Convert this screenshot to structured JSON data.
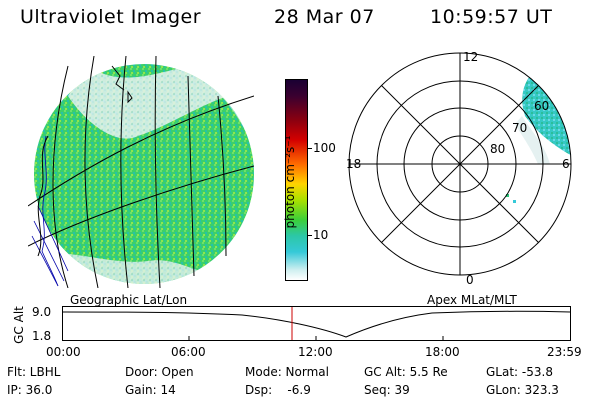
{
  "header": {
    "title": "Ultraviolet Imager",
    "date": "28 Mar 07",
    "time": "10:59:57 UT"
  },
  "colorbar": {
    "unit_label": "photon cm⁻²s⁻¹",
    "ticks": [
      "100",
      "10"
    ]
  },
  "geo_panel": {
    "label": "Geographic Lat/Lon"
  },
  "polar_panel": {
    "label": "Apex MLat/MLT",
    "mlt_labels": {
      "top": "12",
      "left": "18",
      "right": "6",
      "bottom": "0"
    },
    "lat_labels": [
      "60",
      "70",
      "80"
    ]
  },
  "altitude_strip": {
    "axis_label": "GC Alt",
    "y_ticks": [
      "9.0",
      "1.8"
    ],
    "x_ticks": [
      "00:00",
      "06:00",
      "12:00",
      "18:00",
      "23:59"
    ]
  },
  "info": {
    "filter": "Flt: LBHL",
    "door": "Door: Open",
    "mode": "Mode: Normal",
    "gc_alt": "GC Alt: 5.5 Re",
    "glat": "GLat: -53.8",
    "ip": "IP: 36.0",
    "gain": "Gain: 14",
    "dsp": "Dsp:    -6.9",
    "seq": "Seq: 39",
    "glon": "GLon: 323.3"
  },
  "colors": {
    "plot_red_line": "#cc0000",
    "coastline": "#0000aa"
  }
}
